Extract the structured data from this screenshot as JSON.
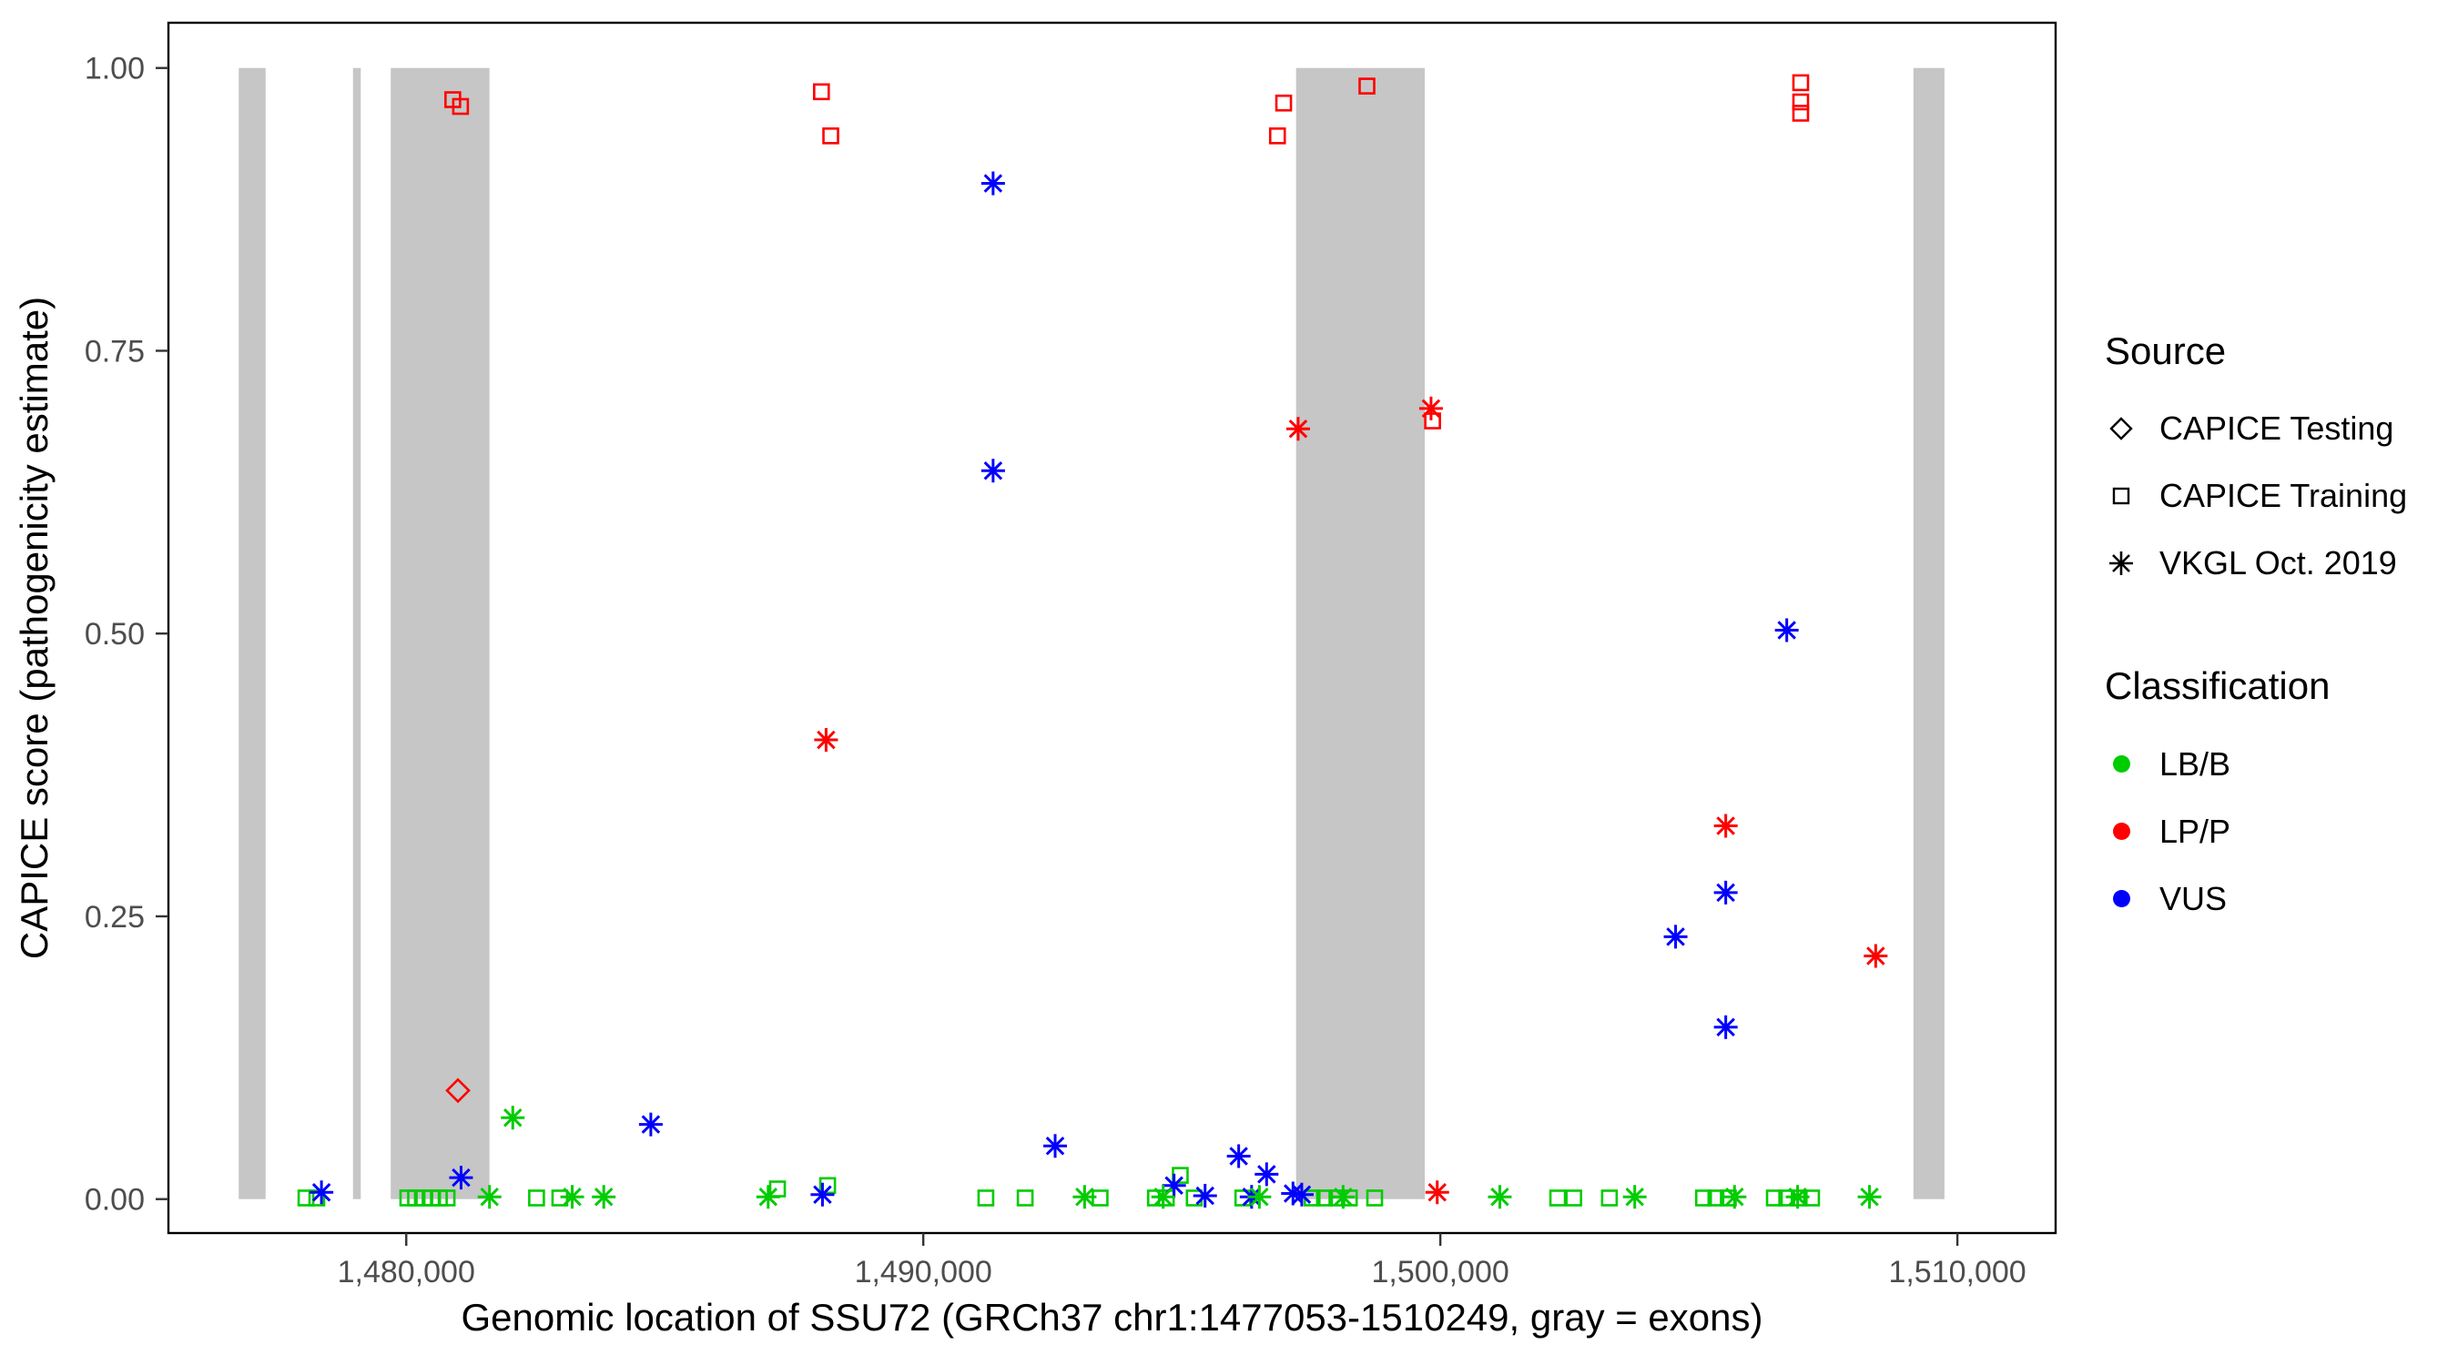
{
  "figure": {
    "background": "#FFFFFF"
  },
  "chart_data": {
    "type": "scatter",
    "title": "",
    "xlabel": "Genomic location of SSU72 (GRCh37 chr1:1477053-1510249, gray = exons)",
    "ylabel": "CAPICE score (pathogenicity estimate)",
    "xlim": [
      1475400,
      1511900
    ],
    "ylim": [
      -0.03,
      1.04
    ],
    "grid": "off",
    "legend_position": "right",
    "x_ticks": [
      {
        "value": 1480000,
        "label": "1,480,000"
      },
      {
        "value": 1490000,
        "label": "1,490,000"
      },
      {
        "value": 1500000,
        "label": "1,500,000"
      },
      {
        "value": 1510000,
        "label": "1,510,000"
      }
    ],
    "y_ticks": [
      {
        "value": 0.0,
        "label": "0.00"
      },
      {
        "value": 0.25,
        "label": "0.25"
      },
      {
        "value": 0.5,
        "label": "0.50"
      },
      {
        "value": 0.75,
        "label": "0.75"
      },
      {
        "value": 1.0,
        "label": "1.00"
      }
    ],
    "exon_color": "#C6C6C6",
    "exons": [
      [
        1476760,
        1477280
      ],
      [
        1478970,
        1479120
      ],
      [
        1479700,
        1481610
      ],
      [
        1497210,
        1499700
      ],
      [
        1509150,
        1509750
      ]
    ],
    "series": [
      {
        "name": "CAPICE Testing / LP-P",
        "source": "CAPICE Testing",
        "classification": "LP/P",
        "shape": "diamond",
        "color": "#FF0000",
        "points": [
          [
            1481000,
            0.096
          ]
        ]
      },
      {
        "name": "CAPICE Training / LP-P",
        "source": "CAPICE Training",
        "classification": "LP/P",
        "shape": "square",
        "color": "#FF0000",
        "points": [
          [
            1480900,
            0.972
          ],
          [
            1481050,
            0.966
          ],
          [
            1488030,
            0.979
          ],
          [
            1488210,
            0.94
          ],
          [
            1496850,
            0.94
          ],
          [
            1496970,
            0.969
          ],
          [
            1498580,
            0.984
          ],
          [
            1499850,
            0.688
          ],
          [
            1506970,
            0.987
          ],
          [
            1506970,
            0.97
          ],
          [
            1506970,
            0.96
          ]
        ]
      },
      {
        "name": "CAPICE Training / LB-B",
        "source": "CAPICE Training",
        "classification": "LB/B",
        "shape": "square",
        "color": "#00CC00",
        "points": [
          [
            1478060,
            0.001
          ],
          [
            1478270,
            0.001
          ],
          [
            1480030,
            0.001
          ],
          [
            1480180,
            0.001
          ],
          [
            1480340,
            0.001
          ],
          [
            1480490,
            0.001
          ],
          [
            1480640,
            0.001
          ],
          [
            1480790,
            0.001
          ],
          [
            1482520,
            0.001
          ],
          [
            1482970,
            0.001
          ],
          [
            1487180,
            0.009
          ],
          [
            1488150,
            0.012
          ],
          [
            1491210,
            0.001
          ],
          [
            1491970,
            0.001
          ],
          [
            1493420,
            0.001
          ],
          [
            1494490,
            0.001
          ],
          [
            1494700,
            0.001
          ],
          [
            1494970,
            0.021
          ],
          [
            1495240,
            0.001
          ],
          [
            1496180,
            0.001
          ],
          [
            1497520,
            0.001
          ],
          [
            1497760,
            0.001
          ],
          [
            1498000,
            0.001
          ],
          [
            1498240,
            0.001
          ],
          [
            1498730,
            0.001
          ],
          [
            1502270,
            0.001
          ],
          [
            1502580,
            0.001
          ],
          [
            1503270,
            0.001
          ],
          [
            1505090,
            0.001
          ],
          [
            1505330,
            0.001
          ],
          [
            1505570,
            0.001
          ],
          [
            1506460,
            0.001
          ],
          [
            1506700,
            0.001
          ],
          [
            1506940,
            0.001
          ],
          [
            1507180,
            0.001
          ]
        ]
      },
      {
        "name": "VKGL Oct. 2019 / LP-P",
        "source": "VKGL Oct. 2019",
        "classification": "LP/P",
        "shape": "asterisk",
        "color": "#FF0000",
        "points": [
          [
            1488120,
            0.406
          ],
          [
            1497250,
            0.681
          ],
          [
            1499820,
            0.699
          ],
          [
            1505520,
            0.33
          ],
          [
            1508420,
            0.215
          ],
          [
            1499940,
            0.006
          ]
        ]
      },
      {
        "name": "VKGL Oct. 2019 / VUS",
        "source": "VKGL Oct. 2019",
        "classification": "VUS",
        "shape": "asterisk",
        "color": "#0000FF",
        "points": [
          [
            1491350,
            0.898
          ],
          [
            1491350,
            0.644
          ],
          [
            1506700,
            0.503
          ],
          [
            1505520,
            0.271
          ],
          [
            1504550,
            0.232
          ],
          [
            1505520,
            0.152
          ],
          [
            1484730,
            0.066
          ],
          [
            1492550,
            0.047
          ],
          [
            1481060,
            0.019
          ],
          [
            1478360,
            0.006
          ],
          [
            1494850,
            0.012
          ],
          [
            1496100,
            0.038
          ],
          [
            1496640,
            0.022
          ],
          [
            1497150,
            0.005
          ],
          [
            1497320,
            0.004
          ],
          [
            1488050,
            0.004
          ],
          [
            1495450,
            0.003
          ],
          [
            1496350,
            0.002
          ]
        ]
      },
      {
        "name": "VKGL Oct. 2019 / LB-B",
        "source": "VKGL Oct. 2019",
        "classification": "LB/B",
        "shape": "asterisk",
        "color": "#00CC00",
        "points": [
          [
            1482060,
            0.072
          ],
          [
            1481610,
            0.002
          ],
          [
            1483210,
            0.002
          ],
          [
            1483820,
            0.002
          ],
          [
            1487000,
            0.002
          ],
          [
            1493120,
            0.002
          ],
          [
            1494640,
            0.002
          ],
          [
            1496500,
            0.002
          ],
          [
            1498120,
            0.002
          ],
          [
            1501150,
            0.002
          ],
          [
            1503760,
            0.002
          ],
          [
            1505690,
            0.002
          ],
          [
            1506910,
            0.002
          ],
          [
            1508300,
            0.002
          ]
        ]
      }
    ]
  },
  "legend": {
    "source": {
      "title": "Source",
      "items": [
        {
          "label": "CAPICE Testing",
          "shape": "diamond"
        },
        {
          "label": "CAPICE Training",
          "shape": "square"
        },
        {
          "label": "VKGL Oct. 2019",
          "shape": "asterisk"
        }
      ]
    },
    "classification": {
      "title": "Classification",
      "items": [
        {
          "label": "LB/B",
          "color": "#00CC00"
        },
        {
          "label": "LP/P",
          "color": "#FF0000"
        },
        {
          "label": "VUS",
          "color": "#0000FF"
        }
      ]
    }
  }
}
